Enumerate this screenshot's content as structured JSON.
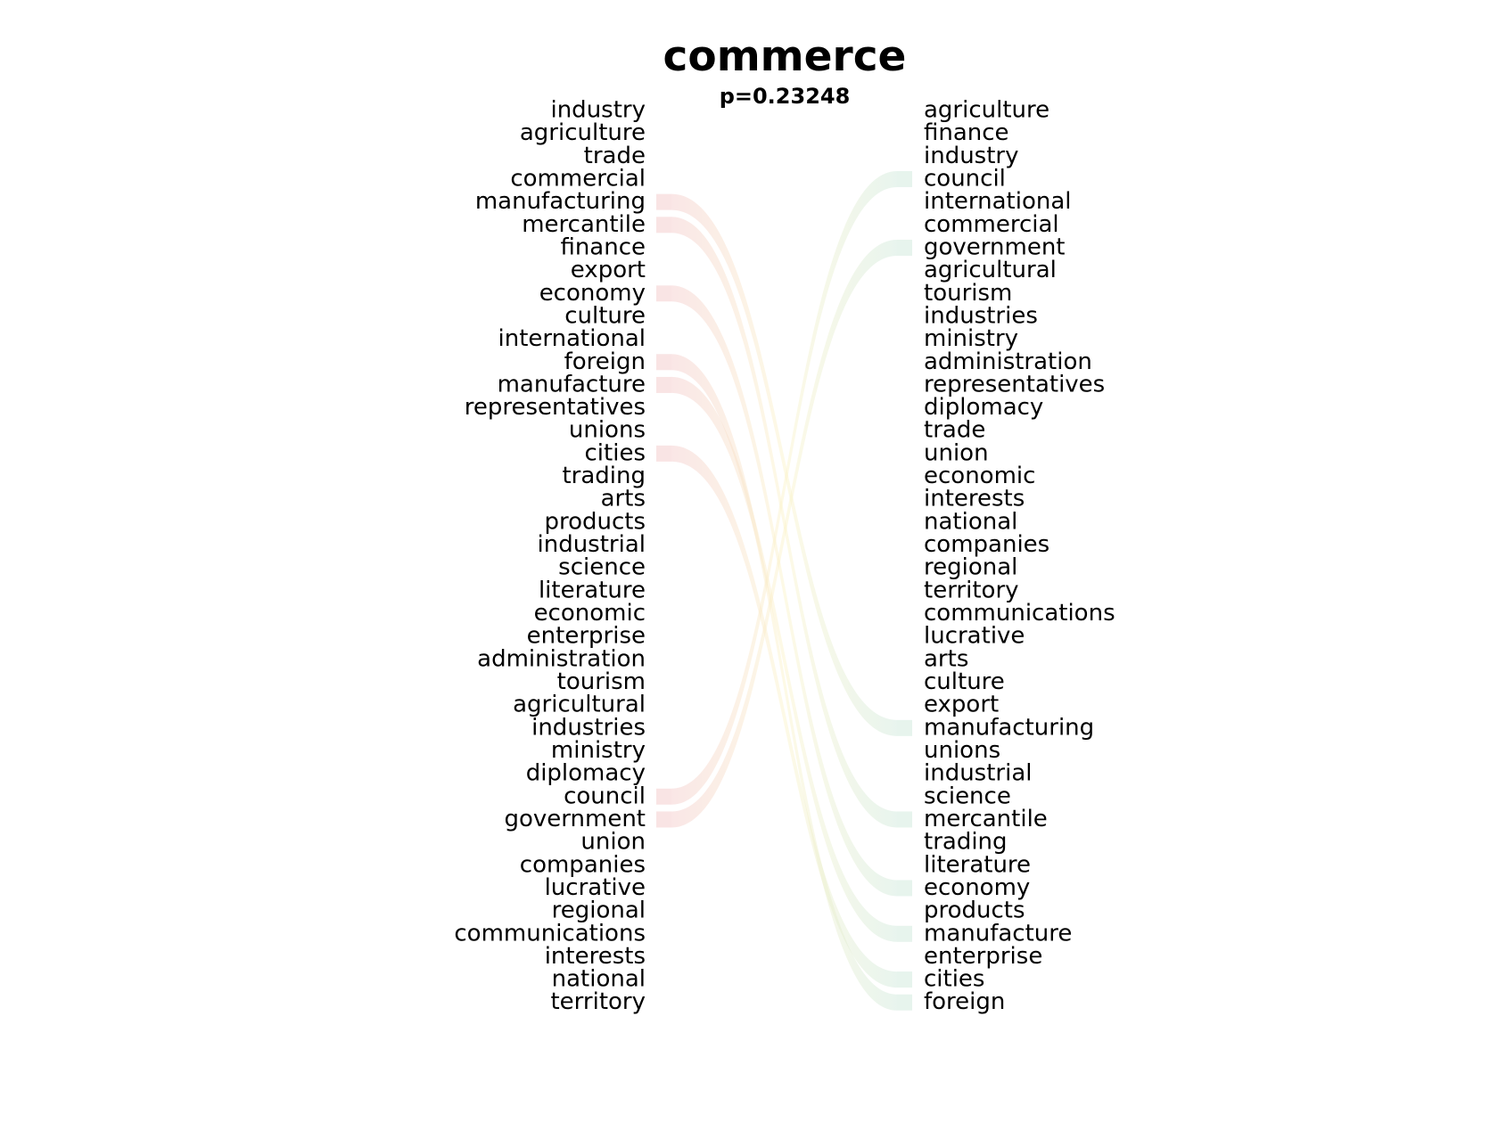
{
  "title": "commerce",
  "subtitle": "p=0.23248",
  "colors": {
    "left_start": "#f2c4c4",
    "middle": "#fbf2c4",
    "right_end": "#c9e6d6"
  },
  "left_words": [
    "industry",
    "agriculture",
    "trade",
    "commercial",
    "manufacturing",
    "mercantile",
    "finance",
    "export",
    "economy",
    "culture",
    "international",
    "foreign",
    "manufacture",
    "representatives",
    "unions",
    "cities",
    "trading",
    "arts",
    "products",
    "industrial",
    "science",
    "literature",
    "economic",
    "enterprise",
    "administration",
    "tourism",
    "agricultural",
    "industries",
    "ministry",
    "diplomacy",
    "council",
    "government",
    "union",
    "companies",
    "lucrative",
    "regional",
    "communications",
    "interests",
    "national",
    "territory"
  ],
  "right_words": [
    "agriculture",
    "finance",
    "industry",
    "council",
    "international",
    "commercial",
    "government",
    "agricultural",
    "tourism",
    "industries",
    "ministry",
    "administration",
    "representatives",
    "diplomacy",
    "trade",
    "union",
    "economic",
    "interests",
    "national",
    "companies",
    "regional",
    "territory",
    "communications",
    "lucrative",
    "arts",
    "culture",
    "export",
    "manufacturing",
    "unions",
    "industrial",
    "science",
    "mercantile",
    "trading",
    "literature",
    "economy",
    "products",
    "manufacture",
    "enterprise",
    "cities",
    "foreign"
  ],
  "links": [
    {
      "word": "manufacturing"
    },
    {
      "word": "mercantile"
    },
    {
      "word": "economy"
    },
    {
      "word": "foreign"
    },
    {
      "word": "manufacture"
    },
    {
      "word": "cities"
    },
    {
      "word": "council"
    },
    {
      "word": "government"
    }
  ]
}
